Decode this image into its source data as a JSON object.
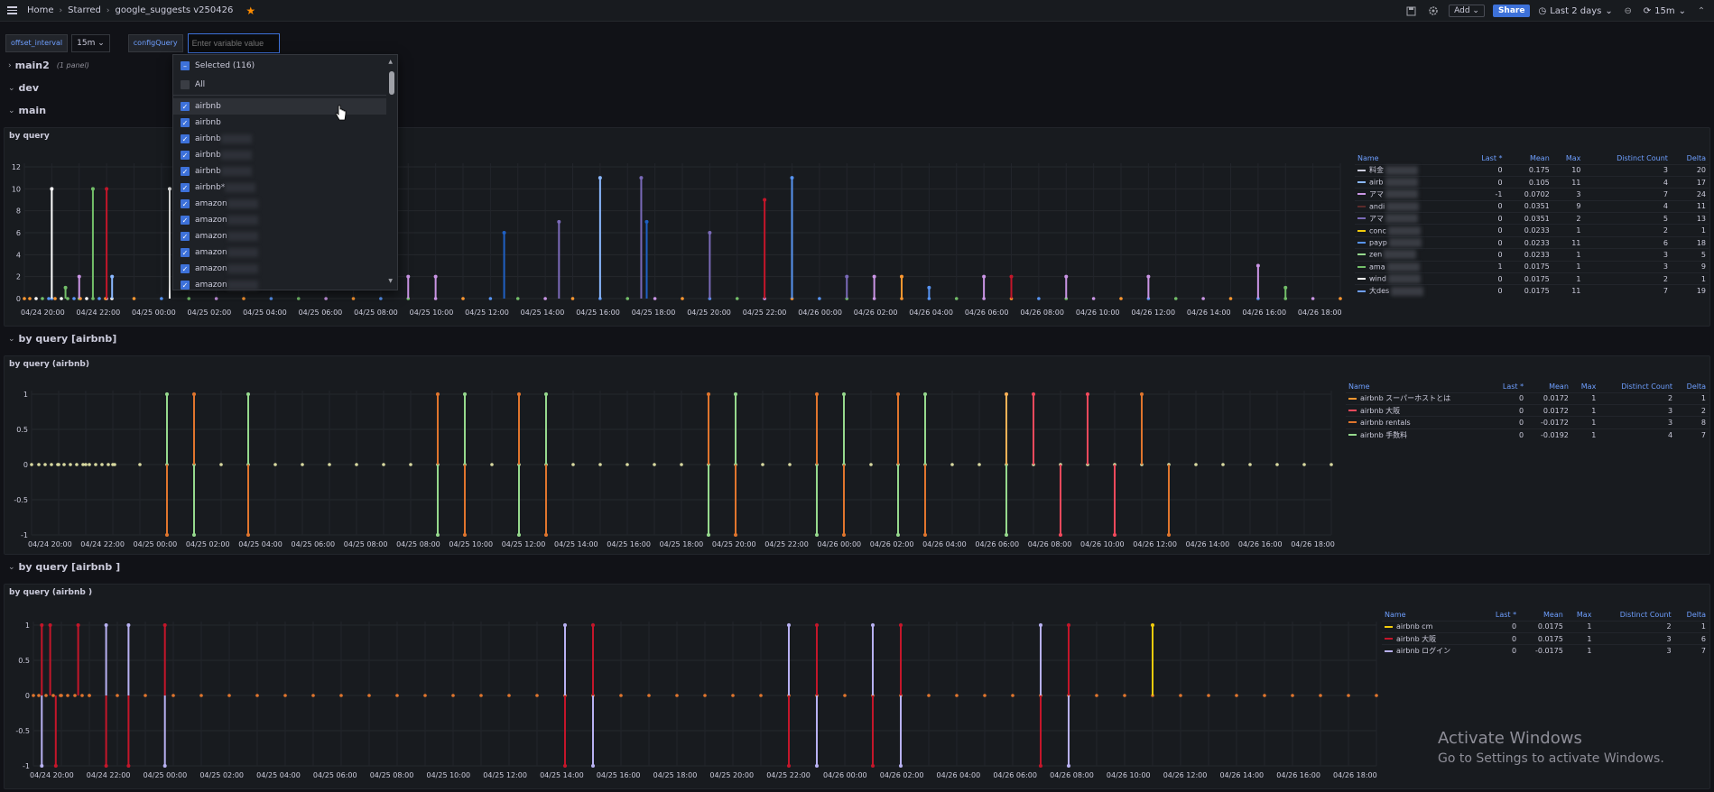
{
  "breadcrumb": {
    "home": "Home",
    "starred": "Starred",
    "current": "google_suggests v250426"
  },
  "toolbar": {
    "add": "Add",
    "share": "Share",
    "time_range": "Last 2 days",
    "refresh": "15m"
  },
  "variables": {
    "offset_label": "offset_interval",
    "offset_value": "15m",
    "config_label": "configQuery",
    "config_placeholder": "Enter variable value"
  },
  "dropdown": {
    "selected": "Selected (116)",
    "all": "All",
    "items": [
      "airbnb",
      "airbnb",
      "airbnb",
      "airbnb",
      "airbnb",
      "airbnb*",
      "amazon",
      "amazon",
      "amazon",
      "amazon",
      "amazon",
      "amazon"
    ]
  },
  "rows": {
    "main2": "main2",
    "main2_count": "(1 panel)",
    "dev": "dev",
    "main": "main",
    "by_query_airbnb": "by query [airbnb]",
    "by_query_airbnb2": "by query [airbnb ]"
  },
  "panels": [
    {
      "title": "by query",
      "legend_headers": [
        "Name",
        "Last *",
        "Mean",
        "Max",
        "Distinct Count",
        "Delta"
      ],
      "legend": [
        {
          "name": "料金",
          "color": "#ccccdc",
          "last": "0",
          "mean": "0.175",
          "max": "10",
          "distinct": "3",
          "delta": "20"
        },
        {
          "name": "airb",
          "color": "#8ab8ff",
          "last": "0",
          "mean": "0.105",
          "max": "11",
          "distinct": "4",
          "delta": "17"
        },
        {
          "name": "アマ",
          "color": "#ca95e5",
          "last": "-1",
          "mean": "0.0702",
          "max": "3",
          "distinct": "7",
          "delta": "24"
        },
        {
          "name": "andi",
          "color": "#5c2b2b",
          "last": "0",
          "mean": "0.0351",
          "max": "9",
          "distinct": "4",
          "delta": "11"
        },
        {
          "name": "アマ",
          "color": "#7a6ab8",
          "last": "0",
          "mean": "0.0351",
          "max": "2",
          "distinct": "5",
          "delta": "13"
        },
        {
          "name": "conc",
          "color": "#f2cc0c",
          "last": "0",
          "mean": "0.0233",
          "max": "1",
          "distinct": "2",
          "delta": "1"
        },
        {
          "name": "payp",
          "color": "#5794f2",
          "last": "0",
          "mean": "0.0233",
          "max": "11",
          "distinct": "6",
          "delta": "18"
        },
        {
          "name": "zen",
          "color": "#96d98d",
          "last": "0",
          "mean": "0.0233",
          "max": "1",
          "distinct": "3",
          "delta": "5"
        },
        {
          "name": "ama",
          "color": "#73bf69",
          "last": "1",
          "mean": "0.0175",
          "max": "1",
          "distinct": "3",
          "delta": "9"
        },
        {
          "name": "wind",
          "color": "#ffffff",
          "last": "0",
          "mean": "0.0175",
          "max": "1",
          "distinct": "2",
          "delta": "1"
        },
        {
          "name": "大des",
          "color": "#6e9fff",
          "last": "0",
          "mean": "0.0175",
          "max": "11",
          "distinct": "7",
          "delta": "19"
        }
      ],
      "chart_data": {
        "type": "line",
        "title": "by query",
        "ylim": [
          0,
          12
        ],
        "yticks": [
          "12",
          "10",
          "8",
          "6",
          "4",
          "2",
          "0"
        ],
        "xticks": [
          "04/24 20:00",
          "04/24 22:00",
          "04/25 00:00",
          "04/25 02:00",
          "04/25 04:00",
          "04/25 06:00",
          "04/25 08:00",
          "04/25 10:00",
          "04/25 12:00",
          "04/25 14:00",
          "04/25 16:00",
          "04/25 18:00",
          "04/25 20:00",
          "04/25 22:00",
          "04/26 00:00",
          "04/26 02:00",
          "04/26 04:00",
          "04/26 06:00",
          "04/26 08:00",
          "04/26 10:00",
          "04/26 12:00",
          "04/26 14:00",
          "04/26 16:00",
          "04/26 18:00"
        ],
        "spikes": [
          {
            "t": 1.0,
            "v": 10,
            "color": "#ffffff"
          },
          {
            "t": 1.5,
            "v": 1,
            "color": "#73bf69"
          },
          {
            "t": 2.5,
            "v": 10,
            "color": "#73bf69"
          },
          {
            "t": 3.0,
            "v": 10,
            "color": "#c4162a"
          },
          {
            "t": 2.0,
            "v": 2,
            "color": "#ca95e5"
          },
          {
            "t": 3.2,
            "v": 2,
            "color": "#8ab8ff"
          },
          {
            "t": 5.3,
            "v": 10,
            "color": "#ffffff"
          },
          {
            "t": 14.0,
            "v": 2,
            "color": "#ca95e5"
          },
          {
            "t": 15.0,
            "v": 2,
            "color": "#ca95e5"
          },
          {
            "t": 17.5,
            "v": 6,
            "color": "#1f60c4"
          },
          {
            "t": 19.5,
            "v": 7,
            "color": "#7a6ab8"
          },
          {
            "t": 21.0,
            "v": 11,
            "color": "#8ab8ff"
          },
          {
            "t": 22.5,
            "v": 11,
            "color": "#7a6ab8"
          },
          {
            "t": 22.7,
            "v": 7,
            "color": "#1f60c4"
          },
          {
            "t": 25.0,
            "v": 6,
            "color": "#7a6ab8"
          },
          {
            "t": 27.0,
            "v": 9,
            "color": "#c4162a"
          },
          {
            "t": 28.0,
            "v": 11,
            "color": "#5794f2"
          },
          {
            "t": 30.0,
            "v": 2,
            "color": "#7a6ab8"
          },
          {
            "t": 31.0,
            "v": 2,
            "color": "#ca95e5"
          },
          {
            "t": 32.0,
            "v": 2,
            "color": "#ff9830"
          },
          {
            "t": 33.0,
            "v": 1,
            "color": "#5794f2"
          },
          {
            "t": 35.0,
            "v": 2,
            "color": "#ca95e5"
          },
          {
            "t": 36.0,
            "v": 2,
            "color": "#c4162a"
          },
          {
            "t": 38.0,
            "v": 2,
            "color": "#ca95e5"
          },
          {
            "t": 41.0,
            "v": 2,
            "color": "#ca95e5"
          },
          {
            "t": 45.0,
            "v": 3,
            "color": "#ca95e5"
          },
          {
            "t": 46.0,
            "v": 1,
            "color": "#73bf69"
          }
        ]
      }
    },
    {
      "title": "by query (airbnb)",
      "legend_headers": [
        "Name",
        "Last *",
        "Mean",
        "Max",
        "Distinct Count",
        "Delta"
      ],
      "legend": [
        {
          "name": "airbnb スーパーホストとは",
          "color": "#ff9830",
          "last": "0",
          "mean": "0.0172",
          "max": "1",
          "distinct": "2",
          "delta": "1"
        },
        {
          "name": "airbnb 大阪",
          "color": "#f2495c",
          "last": "0",
          "mean": "0.0172",
          "max": "1",
          "distinct": "3",
          "delta": "2"
        },
        {
          "name": "airbnb rentals",
          "color": "#e0752d",
          "last": "0",
          "mean": "-0.0172",
          "max": "1",
          "distinct": "3",
          "delta": "8"
        },
        {
          "name": "airbnb 手数料",
          "color": "#96d98d",
          "last": "0",
          "mean": "-0.0192",
          "max": "1",
          "distinct": "4",
          "delta": "7"
        }
      ],
      "chart_data": {
        "type": "line",
        "title": "by query (airbnb)",
        "ylim": [
          -1,
          1
        ],
        "yticks": [
          "1",
          "0.5",
          "0",
          "-0.5",
          "-1"
        ],
        "xticks": [
          "04/24 20:00",
          "04/24 22:00",
          "04/25 00:00",
          "04/25 02:00",
          "04/25 04:00",
          "04/25 06:00",
          "04/25 08:00",
          "04/25 08:00",
          "04/25 10:00",
          "04/25 12:00",
          "04/25 14:00",
          "04/25 16:00",
          "04/25 18:00",
          "04/25 20:00",
          "04/25 22:00",
          "04/26 00:00",
          "04/26 02:00",
          "04/26 04:00",
          "04/26 06:00",
          "04/26 08:00",
          "04/26 10:00",
          "04/26 12:00",
          "04/26 14:00",
          "04/26 16:00",
          "04/26 18:00"
        ],
        "spikes": [
          {
            "t": 5.0,
            "v": 1,
            "color": "#96d98d"
          },
          {
            "t": 5.0,
            "v": -1,
            "color": "#e0752d"
          },
          {
            "t": 6.0,
            "v": 1,
            "color": "#e0752d"
          },
          {
            "t": 6.0,
            "v": -1,
            "color": "#96d98d"
          },
          {
            "t": 8.0,
            "v": 1,
            "color": "#96d98d"
          },
          {
            "t": 8.0,
            "v": -1,
            "color": "#e0752d"
          },
          {
            "t": 15.0,
            "v": 1,
            "color": "#e0752d"
          },
          {
            "t": 15.0,
            "v": -1,
            "color": "#96d98d"
          },
          {
            "t": 16.0,
            "v": 1,
            "color": "#96d98d"
          },
          {
            "t": 16.0,
            "v": -1,
            "color": "#e0752d"
          },
          {
            "t": 18.0,
            "v": 1,
            "color": "#e0752d"
          },
          {
            "t": 18.0,
            "v": -1,
            "color": "#96d98d"
          },
          {
            "t": 19.0,
            "v": 1,
            "color": "#96d98d"
          },
          {
            "t": 19.0,
            "v": -1,
            "color": "#e0752d"
          },
          {
            "t": 25.0,
            "v": 1,
            "color": "#e0752d"
          },
          {
            "t": 25.0,
            "v": -1,
            "color": "#96d98d"
          },
          {
            "t": 26.0,
            "v": 1,
            "color": "#96d98d"
          },
          {
            "t": 26.0,
            "v": -1,
            "color": "#e0752d"
          },
          {
            "t": 29.0,
            "v": 1,
            "color": "#e0752d"
          },
          {
            "t": 29.0,
            "v": -1,
            "color": "#96d98d"
          },
          {
            "t": 30.0,
            "v": 1,
            "color": "#96d98d"
          },
          {
            "t": 30.0,
            "v": -1,
            "color": "#e0752d"
          },
          {
            "t": 32.0,
            "v": 1,
            "color": "#e0752d"
          },
          {
            "t": 32.0,
            "v": -1,
            "color": "#96d98d"
          },
          {
            "t": 33.0,
            "v": 1,
            "color": "#96d98d"
          },
          {
            "t": 33.0,
            "v": -1,
            "color": "#e0752d"
          },
          {
            "t": 36.0,
            "v": 1,
            "color": "#ffb357"
          },
          {
            "t": 36.0,
            "v": -1,
            "color": "#96d98d"
          },
          {
            "t": 37.0,
            "v": 1,
            "color": "#f2495c"
          },
          {
            "t": 38.0,
            "v": -1,
            "color": "#f2495c"
          },
          {
            "t": 39.0,
            "v": 1,
            "color": "#f2495c"
          },
          {
            "t": 40.0,
            "v": -1,
            "color": "#f2495c"
          },
          {
            "t": 41.0,
            "v": 1,
            "color": "#e0752d"
          },
          {
            "t": 42.0,
            "v": -1,
            "color": "#e0752d"
          }
        ]
      }
    },
    {
      "title": "by query (airbnb )",
      "legend_headers": [
        "Name",
        "Last *",
        "Mean",
        "Max",
        "Distinct Count",
        "Delta"
      ],
      "legend": [
        {
          "name": "airbnb cm",
          "color": "#f2cc0c",
          "last": "0",
          "mean": "0.0175",
          "max": "1",
          "distinct": "2",
          "delta": "1"
        },
        {
          "name": "airbnb 大阪",
          "color": "#c4162a",
          "last": "0",
          "mean": "0.0175",
          "max": "1",
          "distinct": "3",
          "delta": "6"
        },
        {
          "name": "airbnb ログイン",
          "color": "#b8b1f2",
          "last": "0",
          "mean": "-0.0175",
          "max": "1",
          "distinct": "3",
          "delta": "7"
        }
      ],
      "chart_data": {
        "type": "line",
        "title": "by query (airbnb )",
        "ylim": [
          -1,
          1
        ],
        "yticks": [
          "1",
          "0.5",
          "0",
          "-0.5",
          "-1"
        ],
        "xticks": [
          "04/24 20:00",
          "04/24 22:00",
          "04/25 00:00",
          "04/25 02:00",
          "04/25 04:00",
          "04/25 06:00",
          "04/25 08:00",
          "04/25 10:00",
          "04/25 12:00",
          "04/25 14:00",
          "04/25 16:00",
          "04/25 18:00",
          "04/25 20:00",
          "04/25 22:00",
          "04/26 00:00",
          "04/26 02:00",
          "04/26 04:00",
          "04/26 06:00",
          "04/26 08:00",
          "04/26 10:00",
          "04/26 12:00",
          "04/26 14:00",
          "04/26 16:00",
          "04/26 18:00"
        ],
        "spikes": [
          {
            "t": 0.3,
            "v": 1,
            "color": "#c4162a"
          },
          {
            "t": 0.3,
            "v": -1,
            "color": "#b8b1f2"
          },
          {
            "t": 0.6,
            "v": 1,
            "color": "#c4162a"
          },
          {
            "t": 0.8,
            "v": -1,
            "color": "#c4162a"
          },
          {
            "t": 1.6,
            "v": 1,
            "color": "#c4162a"
          },
          {
            "t": 2.6,
            "v": 1,
            "color": "#b8b1f2"
          },
          {
            "t": 2.6,
            "v": -1,
            "color": "#c4162a"
          },
          {
            "t": 3.4,
            "v": 1,
            "color": "#b8b1f2"
          },
          {
            "t": 3.4,
            "v": -1,
            "color": "#c4162a"
          },
          {
            "t": 4.7,
            "v": 1,
            "color": "#c4162a"
          },
          {
            "t": 4.7,
            "v": -1,
            "color": "#b8b1f2"
          },
          {
            "t": 19.0,
            "v": 1,
            "color": "#b8b1f2"
          },
          {
            "t": 19.0,
            "v": -1,
            "color": "#c4162a"
          },
          {
            "t": 20.0,
            "v": 1,
            "color": "#c4162a"
          },
          {
            "t": 20.0,
            "v": -1,
            "color": "#b8b1f2"
          },
          {
            "t": 27.0,
            "v": 1,
            "color": "#b8b1f2"
          },
          {
            "t": 27.0,
            "v": -1,
            "color": "#c4162a"
          },
          {
            "t": 28.0,
            "v": 1,
            "color": "#c4162a"
          },
          {
            "t": 28.0,
            "v": -1,
            "color": "#b8b1f2"
          },
          {
            "t": 30.0,
            "v": 1,
            "color": "#b8b1f2"
          },
          {
            "t": 30.0,
            "v": -1,
            "color": "#c4162a"
          },
          {
            "t": 31.0,
            "v": 1,
            "color": "#c4162a"
          },
          {
            "t": 31.0,
            "v": -1,
            "color": "#b8b1f2"
          },
          {
            "t": 36.0,
            "v": 1,
            "color": "#b8b1f2"
          },
          {
            "t": 36.0,
            "v": -1,
            "color": "#c4162a"
          },
          {
            "t": 37.0,
            "v": 1,
            "color": "#c4162a"
          },
          {
            "t": 37.0,
            "v": -1,
            "color": "#b8b1f2"
          },
          {
            "t": 40.0,
            "v": 1,
            "color": "#f2cc0c"
          }
        ]
      }
    }
  ],
  "watermark": {
    "line1": "Activate Windows",
    "line2": "Go to Settings to activate Windows."
  }
}
